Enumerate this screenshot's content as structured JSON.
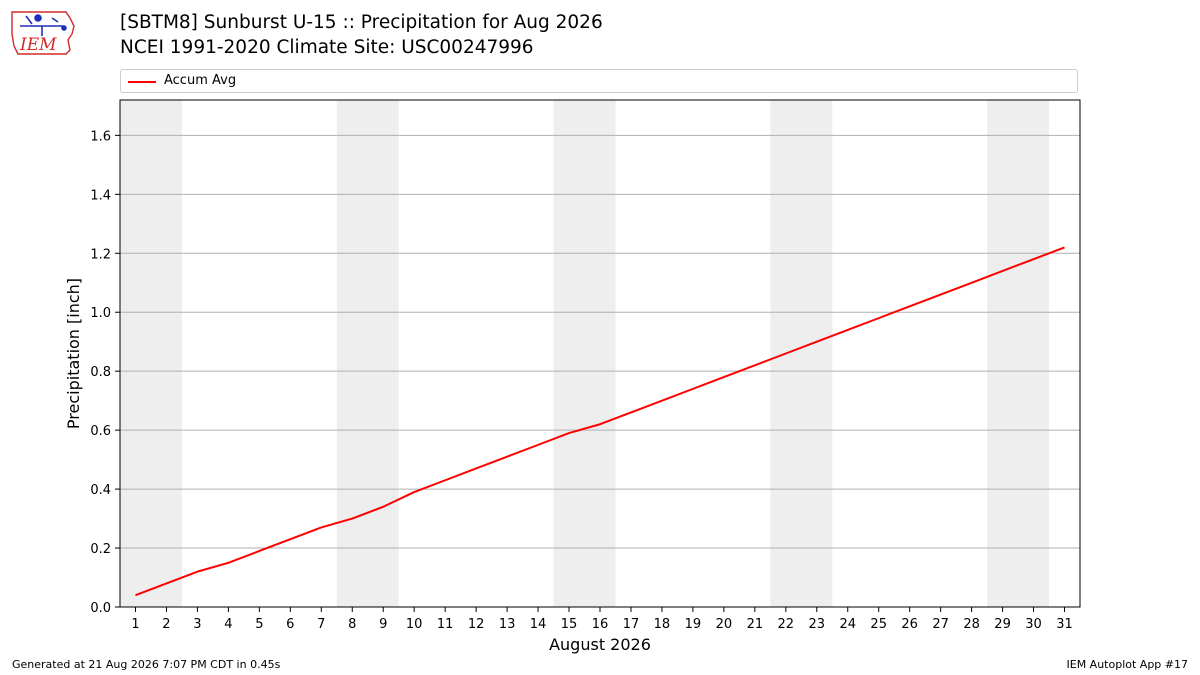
{
  "header": {
    "logo_text": "IEM",
    "title_line1": "[SBTM8] Sunburst U-15 :: Precipitation for Aug 2026",
    "title_line2": "NCEI 1991-2020 Climate Site: USC00247996"
  },
  "footer": {
    "generated": "Generated at 21 Aug 2026 7:07 PM CDT in 0.45s",
    "app": "IEM Autoplot App #17"
  },
  "colors": {
    "series": "#ff0000",
    "weekend_shade": "#eeeeee",
    "grid": "#b0b0b0",
    "logo_red": "#d22b2b",
    "logo_blue": "#1f2fb8"
  },
  "chart_data": {
    "type": "line",
    "title": "[SBTM8] Sunburst U-15 :: Precipitation for Aug 2026",
    "subtitle": "NCEI 1991-2020 Climate Site: USC00247996",
    "xlabel": "August 2026",
    "ylabel": "Precipitation [inch]",
    "x": [
      1,
      2,
      3,
      4,
      5,
      6,
      7,
      8,
      9,
      10,
      11,
      12,
      13,
      14,
      15,
      16,
      17,
      18,
      19,
      20,
      21,
      22,
      23,
      24,
      25,
      26,
      27,
      28,
      29,
      30,
      31
    ],
    "xlim": [
      0.5,
      31.5
    ],
    "ylim": [
      0.0,
      1.72
    ],
    "yticks": [
      0.0,
      0.2,
      0.4,
      0.6,
      0.8,
      1.0,
      1.2,
      1.4,
      1.6
    ],
    "ytick_labels": [
      "0.0",
      "0.2",
      "0.4",
      "0.6",
      "0.8",
      "1.0",
      "1.2",
      "1.4",
      "1.6"
    ],
    "xtick_labels": [
      "1",
      "2",
      "3",
      "4",
      "5",
      "6",
      "7",
      "8",
      "9",
      "10",
      "11",
      "12",
      "13",
      "14",
      "15",
      "16",
      "17",
      "18",
      "19",
      "20",
      "21",
      "22",
      "23",
      "24",
      "25",
      "26",
      "27",
      "28",
      "29",
      "30",
      "31"
    ],
    "grid": "horizontal",
    "legend": "top",
    "weekend_days": [
      1,
      2,
      8,
      9,
      15,
      16,
      22,
      23,
      29,
      30
    ],
    "series": [
      {
        "name": "Accum Avg",
        "values": [
          0.04,
          0.08,
          0.12,
          0.15,
          0.19,
          0.23,
          0.27,
          0.3,
          0.34,
          0.39,
          0.43,
          0.47,
          0.51,
          0.55,
          0.59,
          0.62,
          0.66,
          0.7,
          0.74,
          0.78,
          0.82,
          0.86,
          0.9,
          0.94,
          0.98,
          1.02,
          1.06,
          1.1,
          1.14,
          1.18,
          1.22
        ]
      }
    ]
  }
}
